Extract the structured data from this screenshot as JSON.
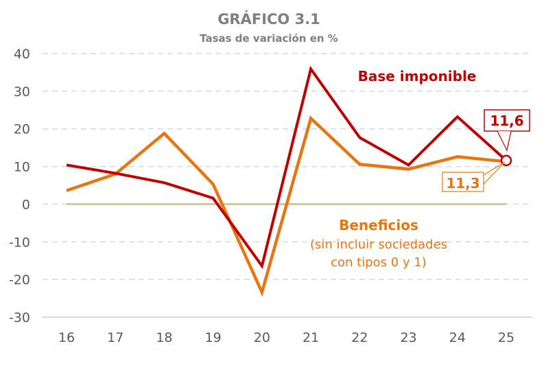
{
  "chart_data": {
    "type": "line",
    "title": "GRÁFICO 3.1",
    "subtitle": "Tasas de variación en %",
    "xlabel": "",
    "ylabel": "",
    "categories": [
      "16",
      "17",
      "18",
      "19",
      "20",
      "21",
      "22",
      "23",
      "24",
      "25"
    ],
    "ylim": [
      -30,
      40
    ],
    "yticks": [
      "40",
      "30",
      "20",
      "10",
      "0",
      "-10",
      "-20",
      "-30"
    ],
    "ytick_values": [
      40,
      30,
      20,
      10,
      0,
      -10,
      -20,
      -30
    ],
    "grid": true,
    "series": [
      {
        "name": "Base imponible",
        "color": "#c00000",
        "values": [
          10.4,
          8.2,
          5.7,
          1.6,
          -16.4,
          35.9,
          17.7,
          10.4,
          23.2,
          11.6
        ]
      },
      {
        "name": "Beneficios",
        "note_line1": "(sin incluir sociedades",
        "note_line2": "con tipos 0 y 1)",
        "color": "#e87511",
        "values": [
          3.6,
          8.0,
          18.8,
          5.3,
          -23.4,
          22.8,
          10.6,
          9.3,
          12.6,
          11.3
        ]
      }
    ],
    "annotations": [
      {
        "text": "11,6",
        "series": "Base imponible",
        "color": "#c00000"
      },
      {
        "text": "11,3",
        "series": "Beneficios",
        "color": "#e87511"
      }
    ],
    "zero_line_color": "#c4bd97"
  }
}
